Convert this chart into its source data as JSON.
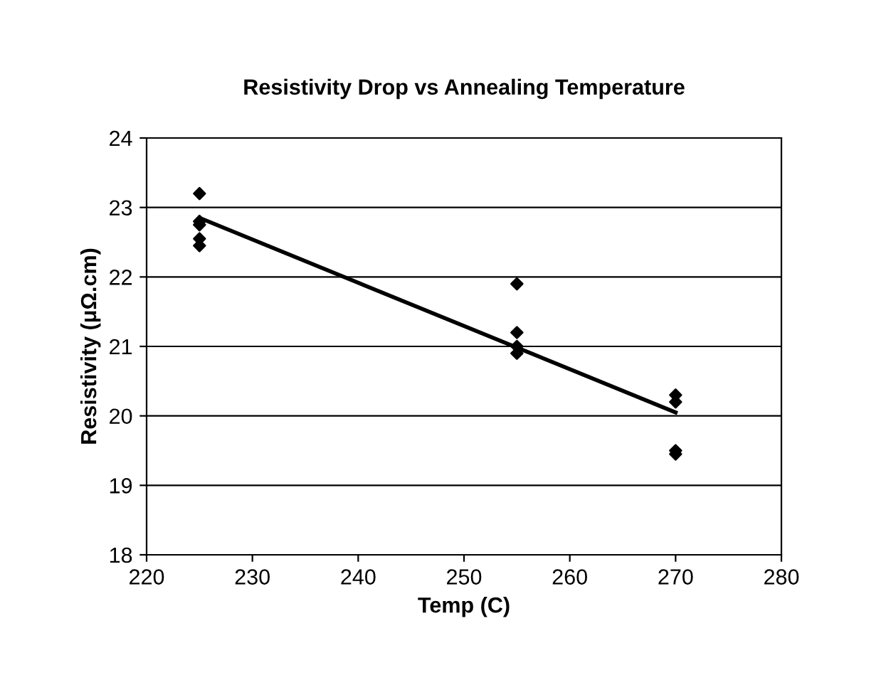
{
  "chart_data": {
    "type": "scatter",
    "title": "Resistivity Drop vs Annealing Temperature",
    "xlabel": "Temp (C)",
    "ylabel": "Resistivity (μΩ.cm)",
    "series": [
      {
        "color": "#000000",
        "marker": "diamond",
        "x": [
          225,
          225,
          225,
          225,
          225,
          255,
          255,
          255,
          255,
          270,
          270,
          270,
          270
        ],
        "values": [
          23.2,
          22.8,
          22.75,
          22.55,
          22.45,
          21.9,
          21.2,
          21.0,
          20.9,
          20.3,
          20.2,
          19.5,
          19.45
        ]
      },
      {
        "type": "line",
        "color": "#000000",
        "marker": "none",
        "x": [
          225,
          270
        ],
        "values": [
          22.85,
          20.05
        ]
      }
    ],
    "xlim": [
      220,
      280
    ],
    "xticks": [
      220,
      230,
      240,
      250,
      260,
      270,
      280
    ],
    "ylim": [
      18,
      24
    ],
    "yticks": [
      18,
      19,
      20,
      21,
      22,
      23,
      24
    ],
    "grid": "y"
  }
}
